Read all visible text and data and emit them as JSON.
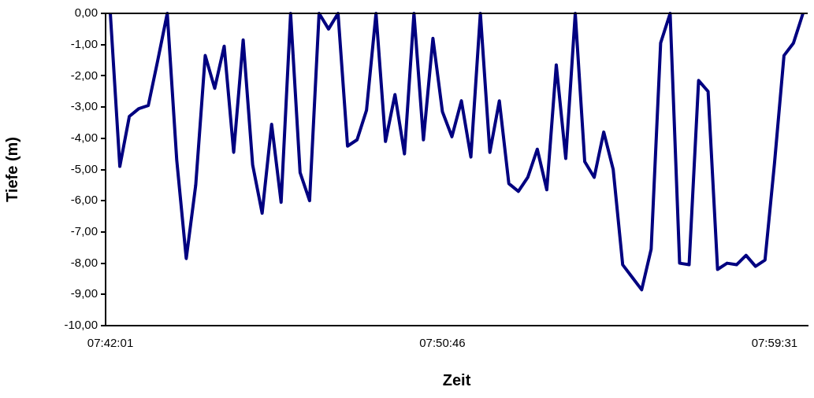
{
  "chart_data": {
    "type": "line",
    "xlabel": "Zeit",
    "ylabel": "Tiefe (m)",
    "categories": [
      "07:42:01",
      null,
      null,
      null,
      null,
      null,
      null,
      null,
      null,
      null,
      null,
      null,
      null,
      null,
      null,
      null,
      null,
      null,
      null,
      null,
      null,
      null,
      null,
      null,
      null,
      null,
      null,
      null,
      null,
      null,
      null,
      null,
      null,
      null,
      null,
      "07:50:46",
      null,
      null,
      null,
      null,
      null,
      null,
      null,
      null,
      null,
      null,
      null,
      null,
      null,
      null,
      null,
      null,
      null,
      null,
      null,
      null,
      null,
      null,
      null,
      null,
      null,
      null,
      null,
      null,
      null,
      null,
      null,
      null,
      null,
      null,
      "07:59:31",
      null,
      null,
      null
    ],
    "series": [
      {
        "color": "#000080",
        "values": [
          0,
          -4.9,
          -3.3,
          -3.05,
          -2.95,
          -1.5,
          0,
          -4.7,
          -7.85,
          -5.5,
          -1.35,
          -2.4,
          -1.05,
          -4.45,
          -0.85,
          -4.85,
          -6.4,
          -3.55,
          -6.05,
          0,
          -5.1,
          -6.0,
          0,
          -0.5,
          0,
          -4.25,
          -4.05,
          -3.1,
          0,
          -4.1,
          -2.6,
          -4.5,
          0,
          -4.05,
          -0.8,
          -3.15,
          -3.95,
          -2.8,
          -4.6,
          0,
          -4.45,
          -2.8,
          -5.45,
          -5.7,
          -5.25,
          -4.35,
          -5.65,
          -1.65,
          -4.65,
          0,
          -4.75,
          -5.25,
          -3.8,
          -5.0,
          -8.05,
          -8.45,
          -8.85,
          -7.55,
          -0.95,
          0,
          -8.0,
          -8.05,
          -2.15,
          -2.5,
          -8.2,
          -8.0,
          -8.05,
          -7.75,
          -8.1,
          -7.9,
          -4.8,
          -1.35,
          -0.95,
          0
        ]
      }
    ],
    "ylim": [
      -10,
      0
    ],
    "yticks": [
      {
        "value": 0,
        "label": "0,00"
      },
      {
        "value": -1,
        "label": "-1,00"
      },
      {
        "value": -2,
        "label": "-2,00"
      },
      {
        "value": -3,
        "label": "-3,00"
      },
      {
        "value": -4,
        "label": "-4,00"
      },
      {
        "value": -5,
        "label": "-5,00"
      },
      {
        "value": -6,
        "label": "-6,00"
      },
      {
        "value": -7,
        "label": "-7,00"
      },
      {
        "value": -8,
        "label": "-8,00"
      },
      {
        "value": -9,
        "label": "-9,00"
      },
      {
        "value": -10,
        "label": "-10,00"
      }
    ],
    "grid": false,
    "legend": false,
    "marker": "none",
    "line_style": "solid"
  }
}
